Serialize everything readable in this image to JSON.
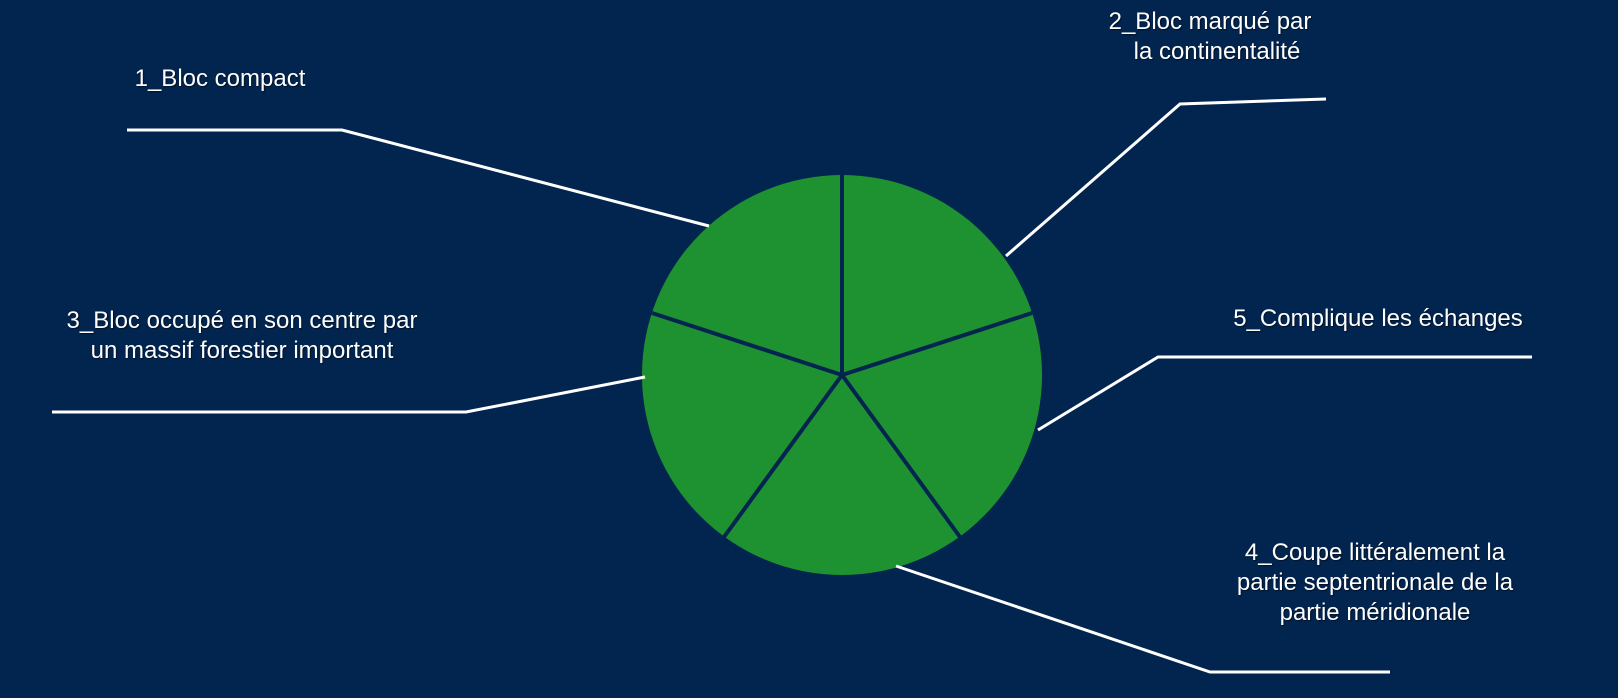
{
  "diagram": {
    "labels": [
      {
        "lines": [
          "1_Bloc compact"
        ]
      },
      {
        "lines": [
          "2_Bloc marqué par",
          "la continentalité"
        ]
      },
      {
        "lines": [
          "3_Bloc occupé en son centre par",
          "un massif forestier  important"
        ]
      },
      {
        "lines": [
          "4_Coupe littéralement la",
          "partie septentrionale de la",
          "partie méridionale"
        ]
      },
      {
        "lines": [
          "5_Complique les échanges"
        ]
      }
    ],
    "segments": 5,
    "colors": {
      "background": "#022550",
      "pie_fill": "#1e9230",
      "divider": "#022550",
      "leader": "#ffffff"
    }
  }
}
